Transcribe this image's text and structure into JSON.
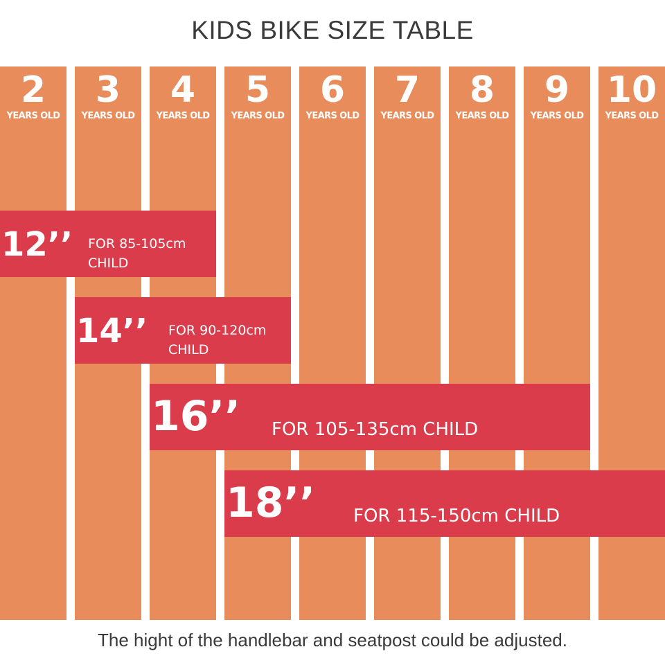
{
  "title": "KIDS BIKE SIZE TABLE",
  "colors": {
    "column": "#E78C5A",
    "size_bar": "#DB3C4B"
  },
  "ages": [
    {
      "number": "2",
      "label": "YEARS OLD"
    },
    {
      "number": "3",
      "label": "YEARS OLD"
    },
    {
      "number": "4",
      "label": "YEARS OLD"
    },
    {
      "number": "5",
      "label": "YEARS OLD"
    },
    {
      "number": "6",
      "label": "YEARS OLD"
    },
    {
      "number": "7",
      "label": "YEARS OLD"
    },
    {
      "number": "8",
      "label": "YEARS OLD"
    },
    {
      "number": "9",
      "label": "YEARS OLD"
    },
    {
      "number": "10",
      "label": "YEARS OLD"
    }
  ],
  "sizes": [
    {
      "size": "12’’",
      "line1": "FOR 85-105cm",
      "line2": "CHILD",
      "from_age": 2,
      "to_age": 4
    },
    {
      "size": "14’’",
      "line1": "FOR 90-120cm",
      "line2": "CHILD",
      "from_age": 3,
      "to_age": 5
    },
    {
      "size": "16’’",
      "line1": "FOR 105-135cm CHILD",
      "line2": "",
      "from_age": 4,
      "to_age": 9
    },
    {
      "size": "18’’",
      "line1": "FOR 115-150cm CHILD",
      "line2": "",
      "from_age": 5,
      "to_age": 10
    }
  ],
  "footer": "The hight of the handlebar and seatpost could be adjusted."
}
